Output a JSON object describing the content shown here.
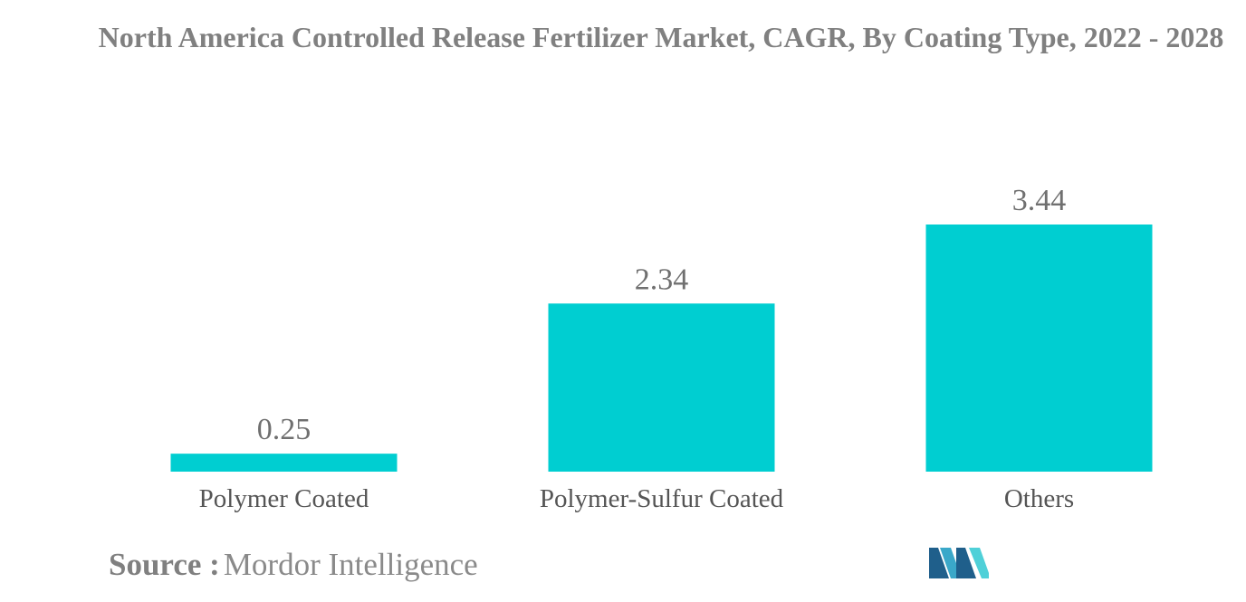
{
  "chart_data": {
    "type": "bar",
    "title": "North America Controlled Release Fertilizer Market, CAGR, By Coating Type, 2022 - 2028",
    "categories": [
      "Polymer Coated",
      "Polymer-Sulfur Coated",
      "Others"
    ],
    "values": [
      0.25,
      2.34,
      3.44
    ],
    "data_labels": [
      "0.25",
      "2.34",
      "3.44"
    ],
    "xlabel": "",
    "ylabel": "",
    "ylim": [
      0,
      3.44
    ],
    "grid": false,
    "legend": "none",
    "colors": {
      "bar": "#00CED1",
      "value_label": "#707070",
      "category_label": "#555555"
    }
  },
  "source": {
    "label": "Source :",
    "text": "Mordor Intelligence"
  },
  "logo": {
    "icon": "mordor-intelligence-logo-icon",
    "colors": [
      "#1f5f8b",
      "#3aa8c9",
      "#4fd0d8"
    ]
  }
}
